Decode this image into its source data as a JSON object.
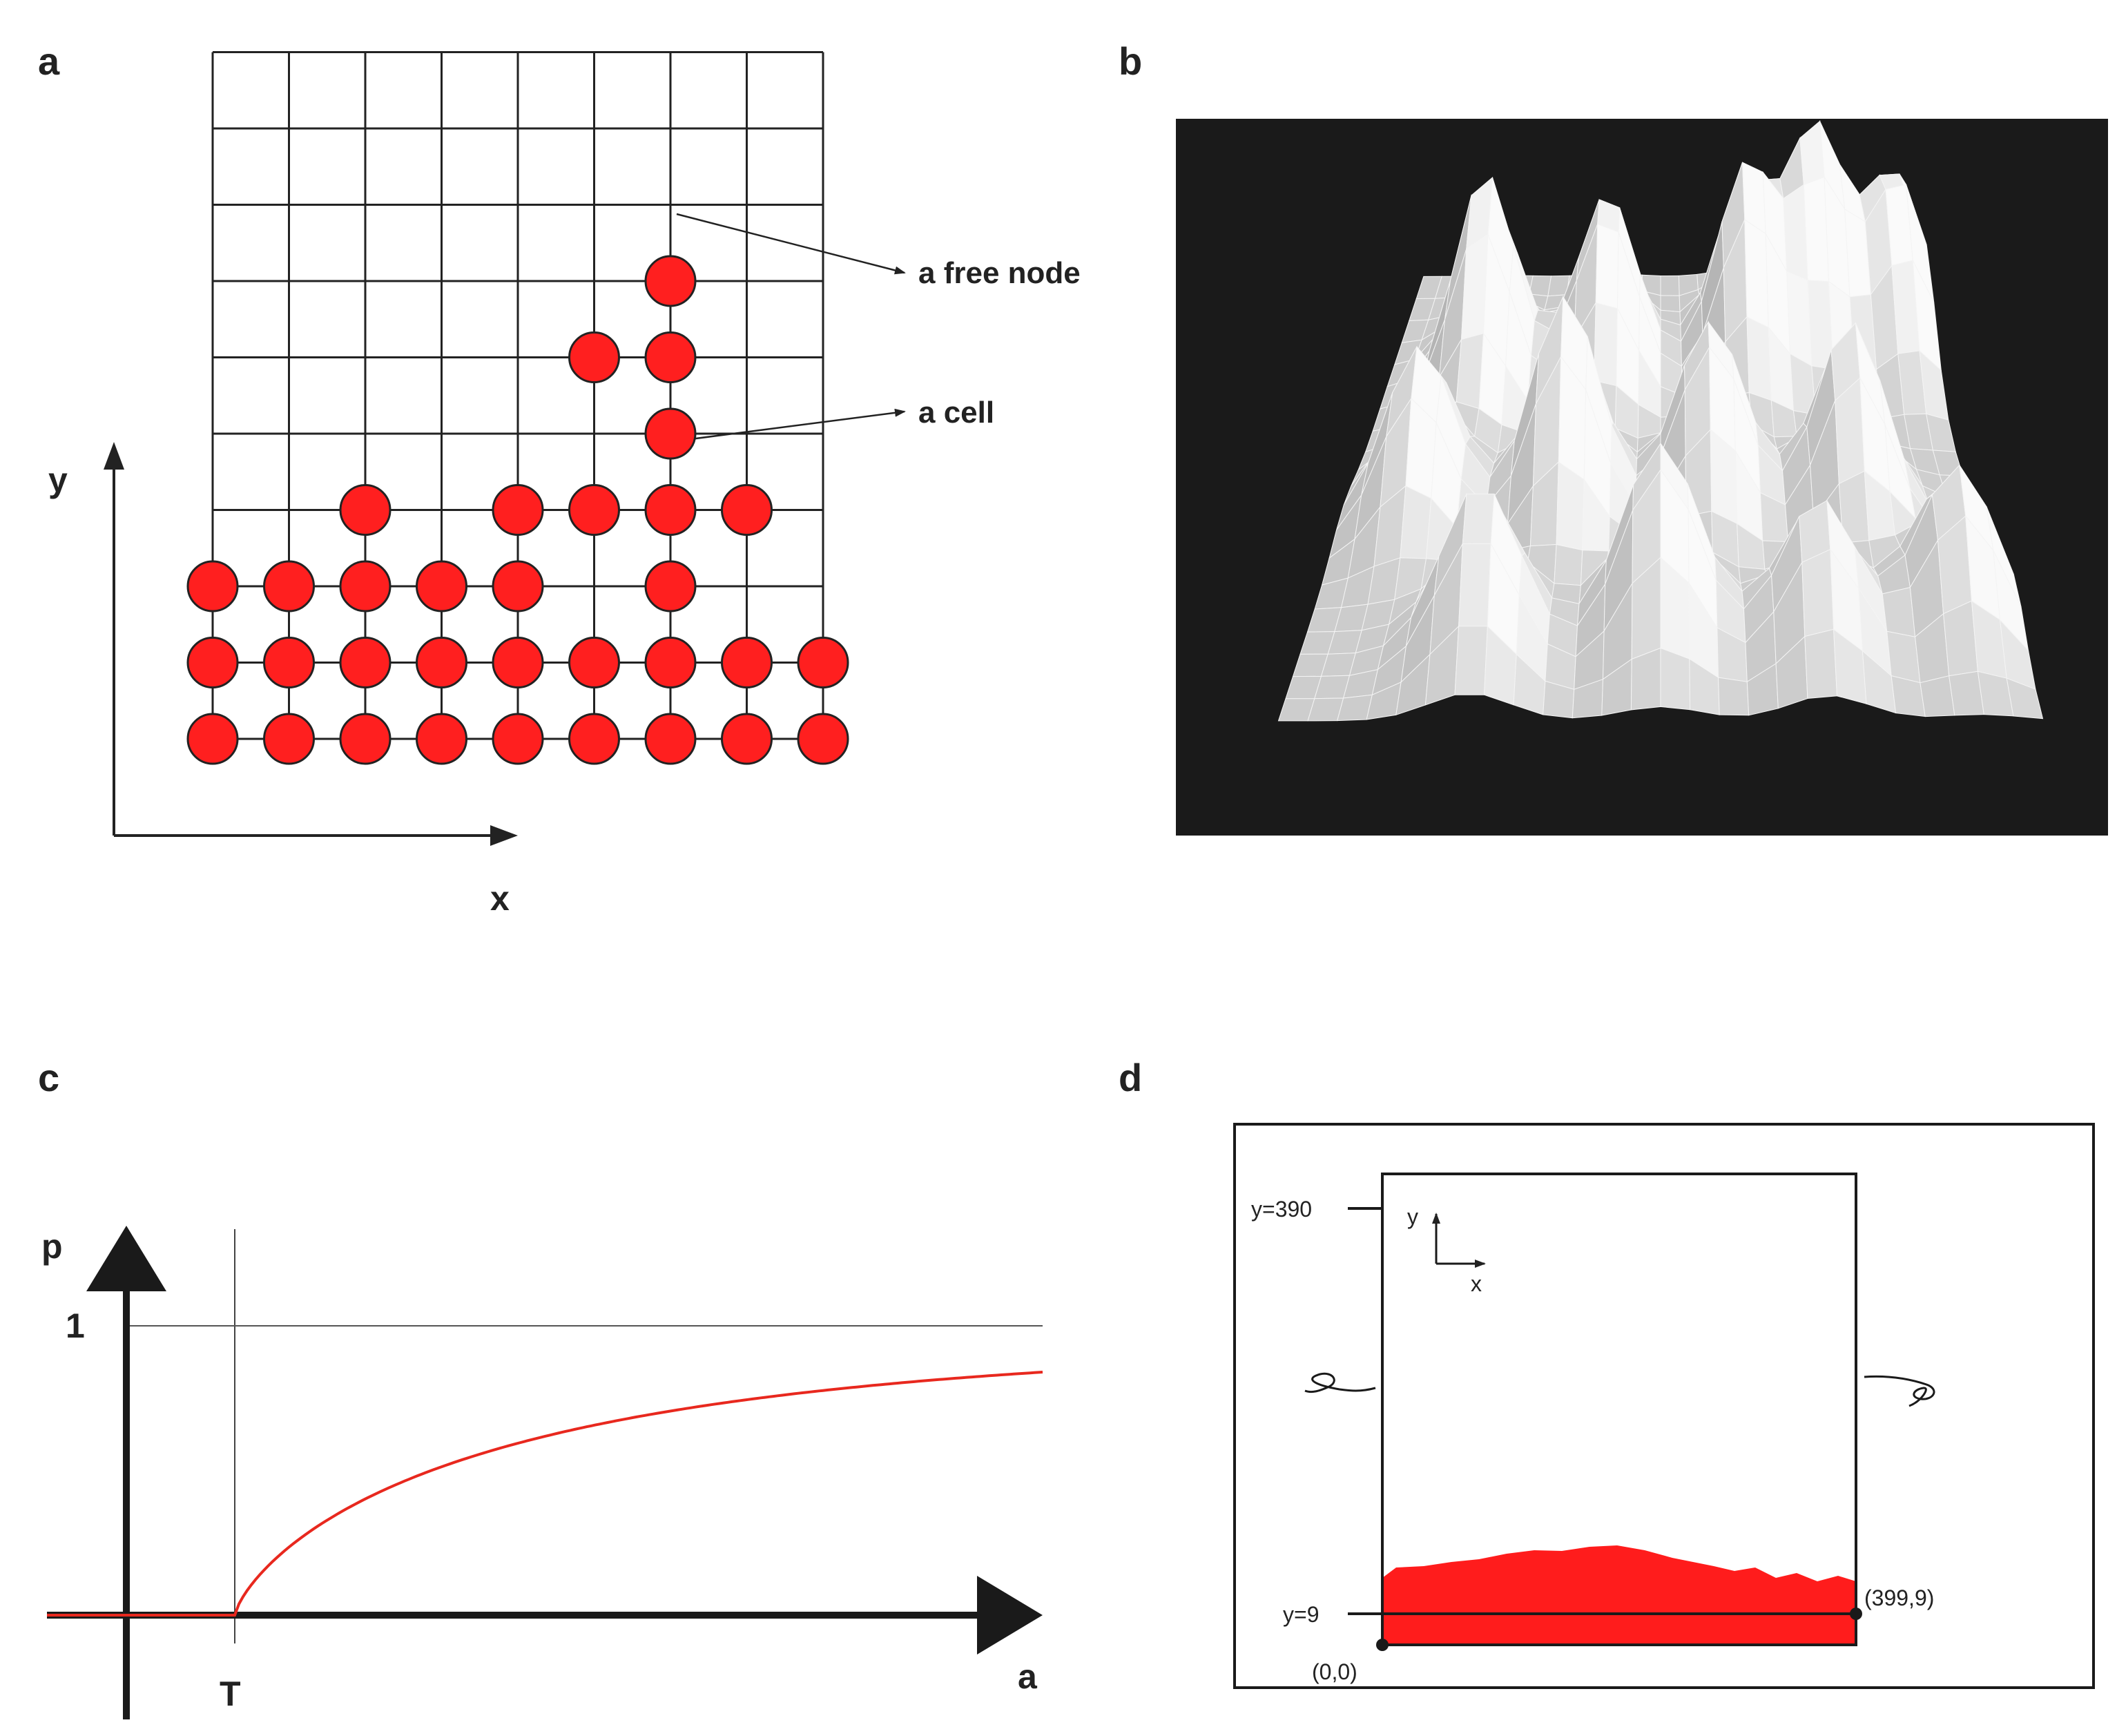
{
  "panels": {
    "a": {
      "letter": "a",
      "x_label": "x",
      "y_label": "y",
      "annotations": {
        "free_node": "a free node",
        "cell": "a cell"
      },
      "grid": {
        "columns": 9,
        "rows": 9
      },
      "cell_color": "#ff1f1f",
      "cells": [
        [
          0,
          0
        ],
        [
          1,
          0
        ],
        [
          2,
          0
        ],
        [
          3,
          0
        ],
        [
          4,
          0
        ],
        [
          5,
          0
        ],
        [
          6,
          0
        ],
        [
          7,
          0
        ],
        [
          8,
          0
        ],
        [
          0,
          1
        ],
        [
          1,
          1
        ],
        [
          2,
          1
        ],
        [
          3,
          1
        ],
        [
          4,
          1
        ],
        [
          5,
          1
        ],
        [
          6,
          1
        ],
        [
          7,
          1
        ],
        [
          8,
          1
        ],
        [
          0,
          2
        ],
        [
          1,
          2
        ],
        [
          2,
          2
        ],
        [
          3,
          2
        ],
        [
          4,
          2
        ],
        [
          6,
          2
        ],
        [
          2,
          3
        ],
        [
          4,
          3
        ],
        [
          5,
          3
        ],
        [
          6,
          3
        ],
        [
          7,
          3
        ],
        [
          6,
          4
        ],
        [
          5,
          5
        ],
        [
          6,
          5
        ],
        [
          6,
          6
        ]
      ]
    },
    "b": {
      "letter": "b",
      "background": "#1a1a1a",
      "surface_color": "#d4d4d4"
    },
    "c": {
      "letter": "c",
      "x_label": "a",
      "y_label": "p",
      "threshold_label": "T",
      "one_label": "1",
      "curve_color": "#e8281e"
    },
    "d": {
      "letter": "d",
      "labels": {
        "top": "y=390",
        "bottom": "y=9",
        "origin": "(0,0)",
        "corner": "(399,9)",
        "axis_y": "y",
        "axis_x": "x"
      },
      "fill_color": "#ff1c1c"
    }
  }
}
